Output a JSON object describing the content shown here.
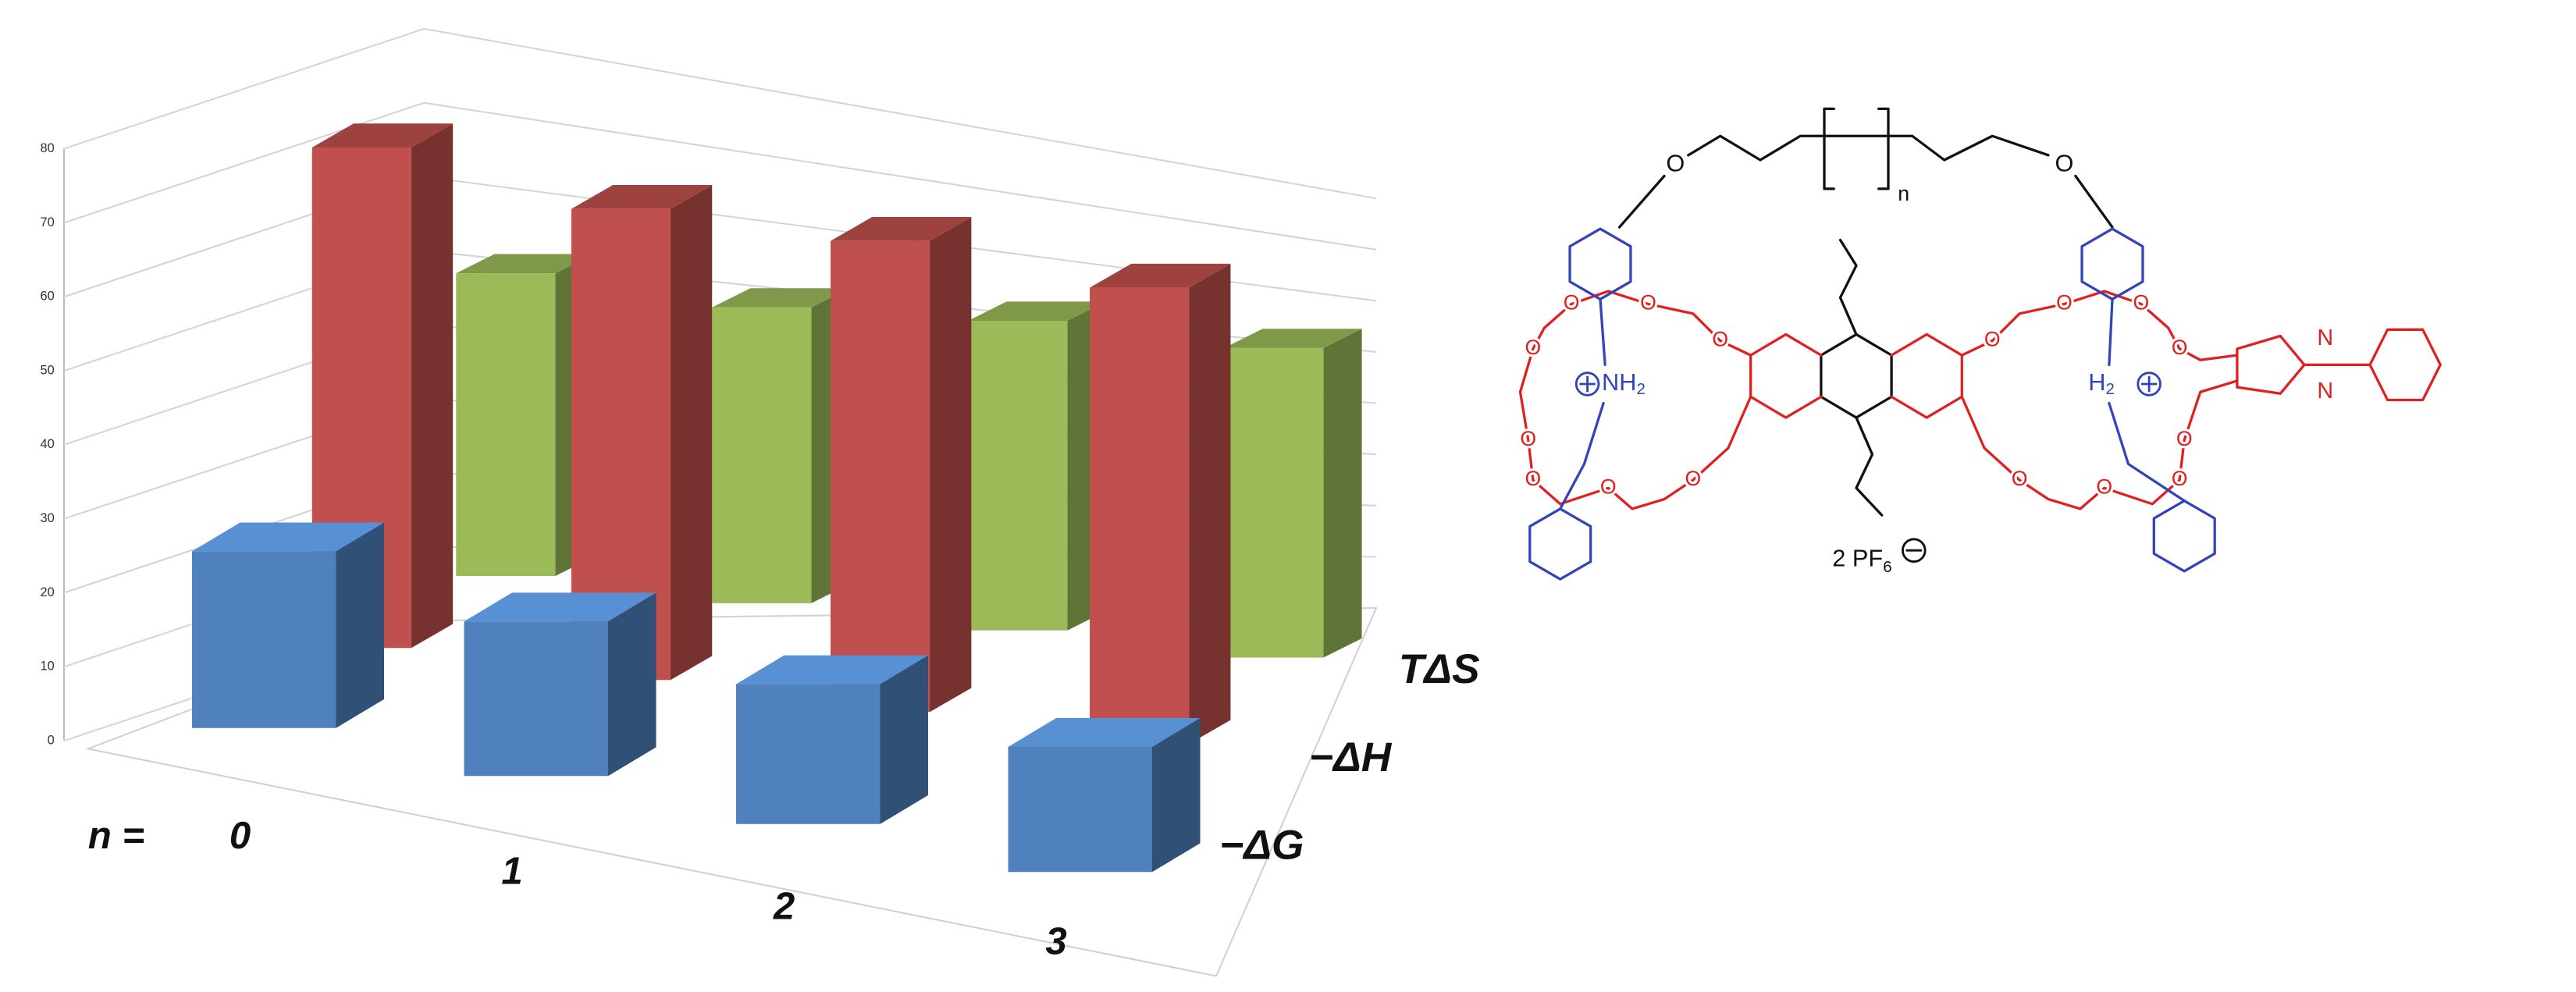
{
  "chart_data": {
    "type": "bar3d",
    "x_label": "n =",
    "categories": [
      "0",
      "1",
      "2",
      "3"
    ],
    "series": [
      {
        "name": "−ΔG",
        "color": "#4f81bd",
        "values": [
          24,
          21,
          19,
          17
        ]
      },
      {
        "name": "−ΔH",
        "color": "#c0504d",
        "values": [
          68,
          64,
          64,
          62
        ]
      },
      {
        "name": "TΔS",
        "color": "#9bbb59",
        "values": [
          44,
          43,
          45,
          45
        ]
      }
    ],
    "ylim": [
      0,
      80
    ],
    "yticks": [
      0,
      10,
      20,
      30,
      40,
      50,
      60,
      70,
      80
    ],
    "grid": true
  },
  "structure": {
    "labels": [
      "O",
      "O",
      "n",
      "NH",
      "2",
      "H",
      "2",
      "N",
      "N",
      "2 PF",
      "6",
      "O",
      "O",
      "O",
      "O",
      "O",
      "O",
      "O",
      "O",
      "O",
      "O",
      "O",
      "O",
      "O",
      "O",
      "O",
      "O"
    ]
  }
}
